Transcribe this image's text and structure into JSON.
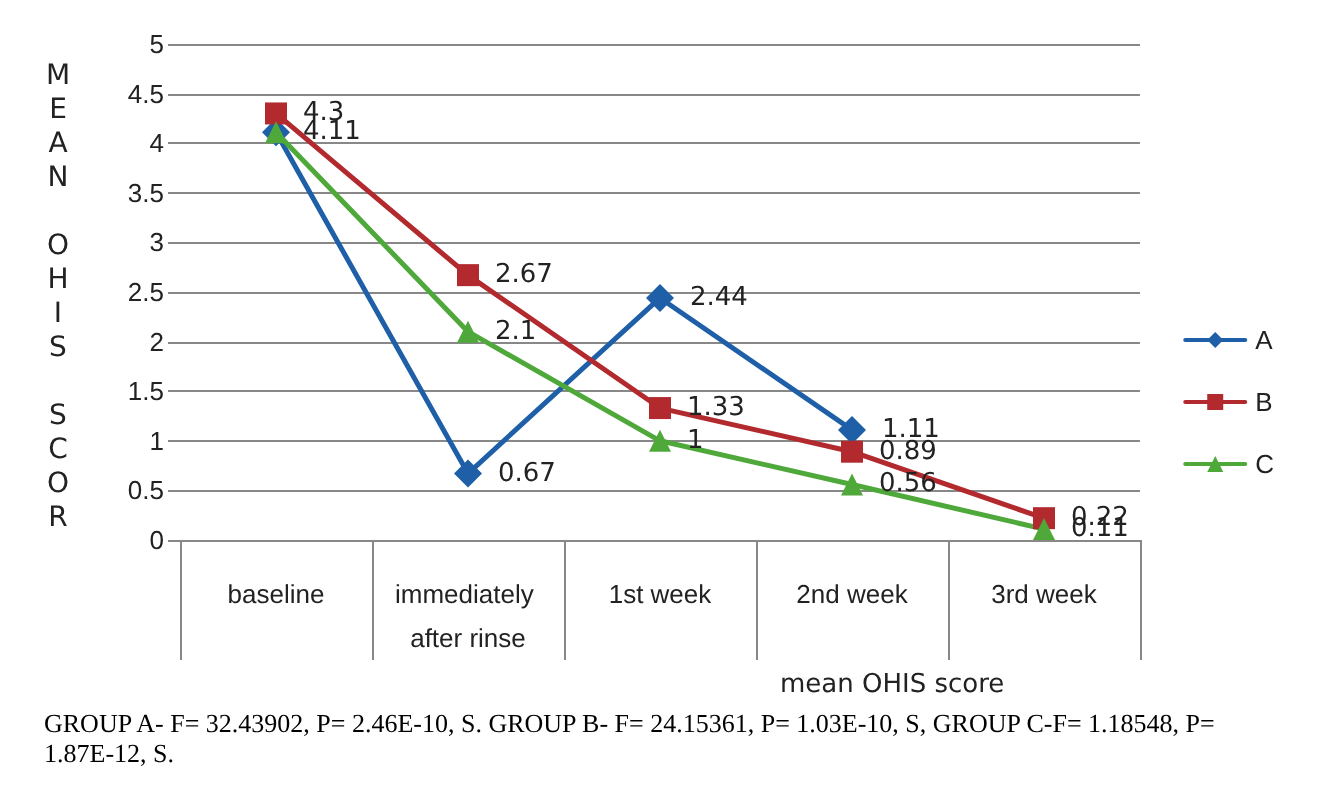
{
  "chart_data": {
    "type": "line",
    "ylabel": "MEAN OHIS SCOR",
    "xlabel": "mean OHIS score",
    "categories": [
      "baseline",
      "immediately after rinse",
      "1st week",
      "2nd week",
      "3rd week"
    ],
    "series": [
      {
        "name": "A",
        "color": "#1f5fa8",
        "marker": "diamond",
        "values": [
          4.11,
          0.67,
          2.44,
          1.11,
          null
        ],
        "value_labels": [
          null,
          "0.67",
          "2.44",
          "1.11",
          null
        ]
      },
      {
        "name": "B",
        "color": "#b22a2e",
        "marker": "square",
        "values": [
          4.3,
          2.67,
          1.33,
          0.89,
          0.22
        ],
        "value_labels": [
          "4.3",
          "2.67",
          "1.33",
          "0.89",
          "0.22"
        ]
      },
      {
        "name": "C",
        "color": "#4fa83a",
        "marker": "triangle",
        "values": [
          4.11,
          2.1,
          1,
          0.56,
          0.11
        ],
        "value_labels": [
          "4.11",
          "2.1",
          "1",
          "0.56",
          "0.11"
        ]
      }
    ],
    "ylim": [
      0,
      5
    ],
    "yticks": [
      0,
      0.5,
      1,
      1.5,
      2,
      2.5,
      3,
      3.5,
      4,
      4.5,
      5
    ],
    "grid": "y",
    "legend": "right",
    "annotations": [
      "GROUP A- F= 32.43902, P= 2.46E-10, S. GROUP B- F= 24.15361, P= 1.03E-10, S, GROUP C-F= 1.18548, P= 1.87E-12, S."
    ]
  }
}
